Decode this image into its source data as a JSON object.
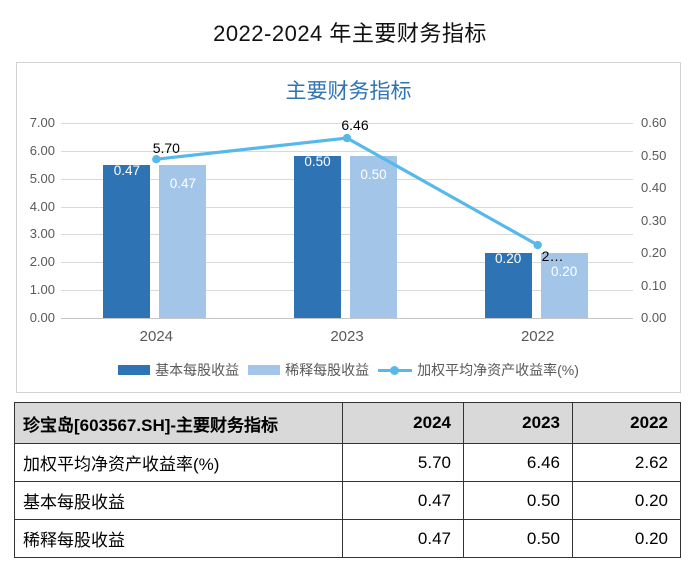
{
  "page": {
    "title": "2022-2024 年主要财务指标"
  },
  "chart_data": {
    "type": "bar+line",
    "title": "主要财务指标",
    "categories": [
      "2024",
      "2023",
      "2022"
    ],
    "series": [
      {
        "name": "基本每股收益",
        "type": "bar",
        "axis": "right",
        "color": "#2E74B5",
        "values": [
          0.47,
          0.5,
          0.2
        ],
        "point_labels": [
          "0.47",
          "0.50",
          "0.20"
        ]
      },
      {
        "name": "稀释每股收益",
        "type": "bar",
        "axis": "right",
        "color": "#A3C6E8",
        "values": [
          0.47,
          0.5,
          0.2
        ],
        "point_labels": [
          "0.47",
          "0.50",
          "0.20"
        ]
      },
      {
        "name": "加权平均净资产收益率(%)",
        "type": "line",
        "axis": "left",
        "color": "#56B9EA",
        "values": [
          5.7,
          6.46,
          2.62
        ],
        "point_labels": [
          "5.70",
          "6.46",
          "2…"
        ]
      }
    ],
    "left_axis": {
      "min": 0,
      "max": 7,
      "tick_labels": [
        "7.00",
        "6.00",
        "5.00",
        "4.00",
        "3.00",
        "2.00",
        "1.00",
        "0.00"
      ]
    },
    "right_axis": {
      "min": 0,
      "max": 0.6,
      "tick_labels": [
        "0.60",
        "0.50",
        "0.40",
        "0.30",
        "0.20",
        "0.10",
        "0.00"
      ]
    },
    "grid": true,
    "legend_position": "bottom"
  },
  "table": {
    "header": [
      "珍宝岛[603567.SH]-主要财务指标",
      "2024",
      "2023",
      "2022"
    ],
    "rows": [
      [
        "加权平均净资产收益率(%)",
        "5.70",
        "6.46",
        "2.62"
      ],
      [
        "基本每股收益",
        "0.47",
        "0.50",
        "0.20"
      ],
      [
        "稀释每股收益",
        "0.47",
        "0.50",
        "0.20"
      ]
    ]
  },
  "colors": {
    "page_title_text": "#111111",
    "chart_title_text": "#2E74B5",
    "grid_line": "#D9D9D9",
    "axis_line": "#C4C4C4",
    "axis_text": "#595959",
    "bar_label_text": "#FFFFFF",
    "line_label_text": "#000000",
    "table_header_bg": "#D9D9D9",
    "table_border": "#333333"
  }
}
